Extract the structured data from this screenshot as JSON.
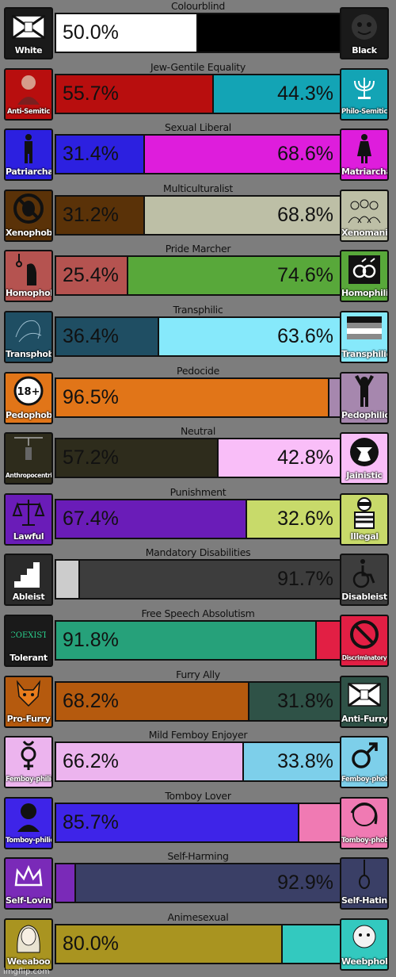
{
  "axes": [
    {
      "title": "Colourblind",
      "left": {
        "label": "White",
        "pct": "50.0%",
        "value": 50.0,
        "color": "#ffffff",
        "icon_bg": "#1a1a1a",
        "icon": "flag-icon"
      },
      "right": {
        "label": "Black",
        "pct": "",
        "value": 50.0,
        "color": "#000000",
        "icon_bg": "#1a1a1a",
        "icon": "mask-icon"
      }
    },
    {
      "title": "Jew-Gentile Equality",
      "left": {
        "label": "Anti-Semitic",
        "pct": "55.7%",
        "value": 55.7,
        "color": "#b80e0e",
        "icon_bg": "#b80e0e",
        "icon": "portrait-icon"
      },
      "right": {
        "label": "Philo-Semitic",
        "pct": "44.3%",
        "value": 44.3,
        "color": "#13a4b5",
        "icon_bg": "#13a4b5",
        "icon": "menorah-icon"
      }
    },
    {
      "title": "Sexual Liberal",
      "left": {
        "label": "Patriarchal",
        "pct": "31.4%",
        "value": 31.4,
        "color": "#2c20e0",
        "icon_bg": "#2c20e0",
        "icon": "male-figure-icon"
      },
      "right": {
        "label": "Matriarchal",
        "pct": "68.6%",
        "value": 68.6,
        "color": "#de1ddc",
        "icon_bg": "#de1ddc",
        "icon": "female-figure-icon"
      }
    },
    {
      "title": "Multiculturalist",
      "left": {
        "label": "Xenophobic",
        "pct": "31.2%",
        "value": 31.2,
        "color": "#5a3208",
        "icon_bg": "#5a3208",
        "icon": "no-alien-icon"
      },
      "right": {
        "label": "Xenomanic",
        "pct": "68.8%",
        "value": 68.8,
        "color": "#bdbfa6",
        "icon_bg": "#bdbfa6",
        "icon": "crowd-icon"
      }
    },
    {
      "title": "Pride Marcher",
      "left": {
        "label": "Homophobic",
        "pct": "25.4%",
        "value": 25.4,
        "color": "#b55350",
        "icon_bg": "#b55350",
        "icon": "noose-figure-icon"
      },
      "right": {
        "label": "Homophilic",
        "pct": "74.6%",
        "value": 74.6,
        "color": "#58a83a",
        "icon_bg": "#58a83a",
        "icon": "linked-rings-icon"
      }
    },
    {
      "title": "Transphilic",
      "left": {
        "label": "Transphobic",
        "pct": "36.4%",
        "value": 36.4,
        "color": "#1f4e63",
        "icon_bg": "#1f4e63",
        "icon": "sketch-icon"
      },
      "right": {
        "label": "Transphilic",
        "pct": "63.6%",
        "value": 63.6,
        "color": "#86e9fb",
        "icon_bg": "#86e9fb",
        "icon": "stripes-icon"
      }
    },
    {
      "title": "Pedocide",
      "left": {
        "label": "Pedophobic",
        "pct": "96.5%",
        "value": 96.5,
        "color": "#e17518",
        "icon_bg": "#e17518",
        "icon": "18-plus-icon"
      },
      "right": {
        "label": "Pedophilic",
        "pct": "",
        "value": 3.5,
        "color": "#a687ae",
        "icon_bg": "#a687ae",
        "icon": "child-figure-icon"
      }
    },
    {
      "title": "Neutral",
      "left": {
        "label": "Anthropocentric",
        "pct": "57.2%",
        "value": 57.2,
        "color": "#2e2c1c",
        "icon_bg": "#2e2c1c",
        "icon": "hanging-icon"
      },
      "right": {
        "label": "Jainistic",
        "pct": "42.8%",
        "value": 42.8,
        "color": "#f9bef8",
        "icon_bg": "#f9bef8",
        "icon": "cow-icon"
      }
    },
    {
      "title": "Punishment",
      "left": {
        "label": "Lawful",
        "pct": "67.4%",
        "value": 67.4,
        "color": "#6a1cb8",
        "icon_bg": "#6a1cb8",
        "icon": "scales-icon"
      },
      "right": {
        "label": "Illegal",
        "pct": "32.6%",
        "value": 32.6,
        "color": "#c8da6a",
        "icon_bg": "#c8da6a",
        "icon": "robber-icon"
      }
    },
    {
      "title": "Mandatory Disabilities",
      "left": {
        "label": "Ableist",
        "pct": "",
        "value": 8.3,
        "color": "#cccccc",
        "icon_bg": "#2a2a2a",
        "icon": "stairs-icon"
      },
      "right": {
        "label": "Disableist",
        "pct": "91.7%",
        "value": 91.7,
        "color": "#3d3d3d",
        "icon_bg": "#3d3d3d",
        "icon": "wheelchair-icon"
      }
    },
    {
      "title": "Free Speech Absolutism",
      "left": {
        "label": "Tolerant",
        "pct": "91.8%",
        "value": 91.8,
        "color": "#26a17a",
        "icon_bg": "#1a1a1a",
        "icon": "coexist-icon"
      },
      "right": {
        "label": "Discriminatory",
        "pct": "",
        "value": 8.2,
        "color": "#e21f44",
        "icon_bg": "#e21f44",
        "icon": "no-sign-icon"
      }
    },
    {
      "title": "Furry Ally",
      "left": {
        "label": "Pro-Furry",
        "pct": "68.2%",
        "value": 68.2,
        "color": "#b55a0e",
        "icon_bg": "#b55a0e",
        "icon": "fox-icon"
      },
      "right": {
        "label": "Anti-Furry",
        "pct": "31.8%",
        "value": 31.8,
        "color": "#2f5247",
        "icon_bg": "#2f5247",
        "icon": "flag-icon"
      }
    },
    {
      "title": "Mild Femboy Enjoyer",
      "left": {
        "label": "Femboy-philic",
        "pct": "66.2%",
        "value": 66.2,
        "color": "#ecb4ee",
        "icon_bg": "#ecb4ee",
        "icon": "gender-icon"
      },
      "right": {
        "label": "Femboy-phobic",
        "pct": "33.8%",
        "value": 33.8,
        "color": "#7dcfea",
        "icon_bg": "#7dcfea",
        "icon": "male-symbol-icon"
      }
    },
    {
      "title": "Tomboy Lover",
      "left": {
        "label": "Tomboy-philic",
        "pct": "85.7%",
        "value": 85.7,
        "color": "#3e24e8",
        "icon_bg": "#3e24e8",
        "icon": "tomboy-icon"
      },
      "right": {
        "label": "Tomboy-phobic",
        "pct": "",
        "value": 14.3,
        "color": "#f07ab3",
        "icon_bg": "#f07ab3",
        "icon": "girl-icon"
      }
    },
    {
      "title": "Self-Harming",
      "left": {
        "label": "Self-Loving",
        "pct": "",
        "value": 7.1,
        "color": "#7a2ab8",
        "icon_bg": "#7a2ab8",
        "icon": "crown-icon"
      },
      "right": {
        "label": "Self-Hating",
        "pct": "92.9%",
        "value": 92.9,
        "color": "#3a3f66",
        "icon_bg": "#3a3f66",
        "icon": "noose-icon"
      }
    },
    {
      "title": "Animesexual",
      "left": {
        "label": "Weeaboo",
        "pct": "80.0%",
        "value": 80.0,
        "color": "#a99420",
        "icon_bg": "#a99420",
        "icon": "anime-girl-icon"
      },
      "right": {
        "label": "Weebphobic",
        "pct": "",
        "value": 20.0,
        "color": "#33c9bf",
        "icon_bg": "#33c9bf",
        "icon": "sketch-face-icon"
      }
    }
  ],
  "watermark": "imgflip.com"
}
